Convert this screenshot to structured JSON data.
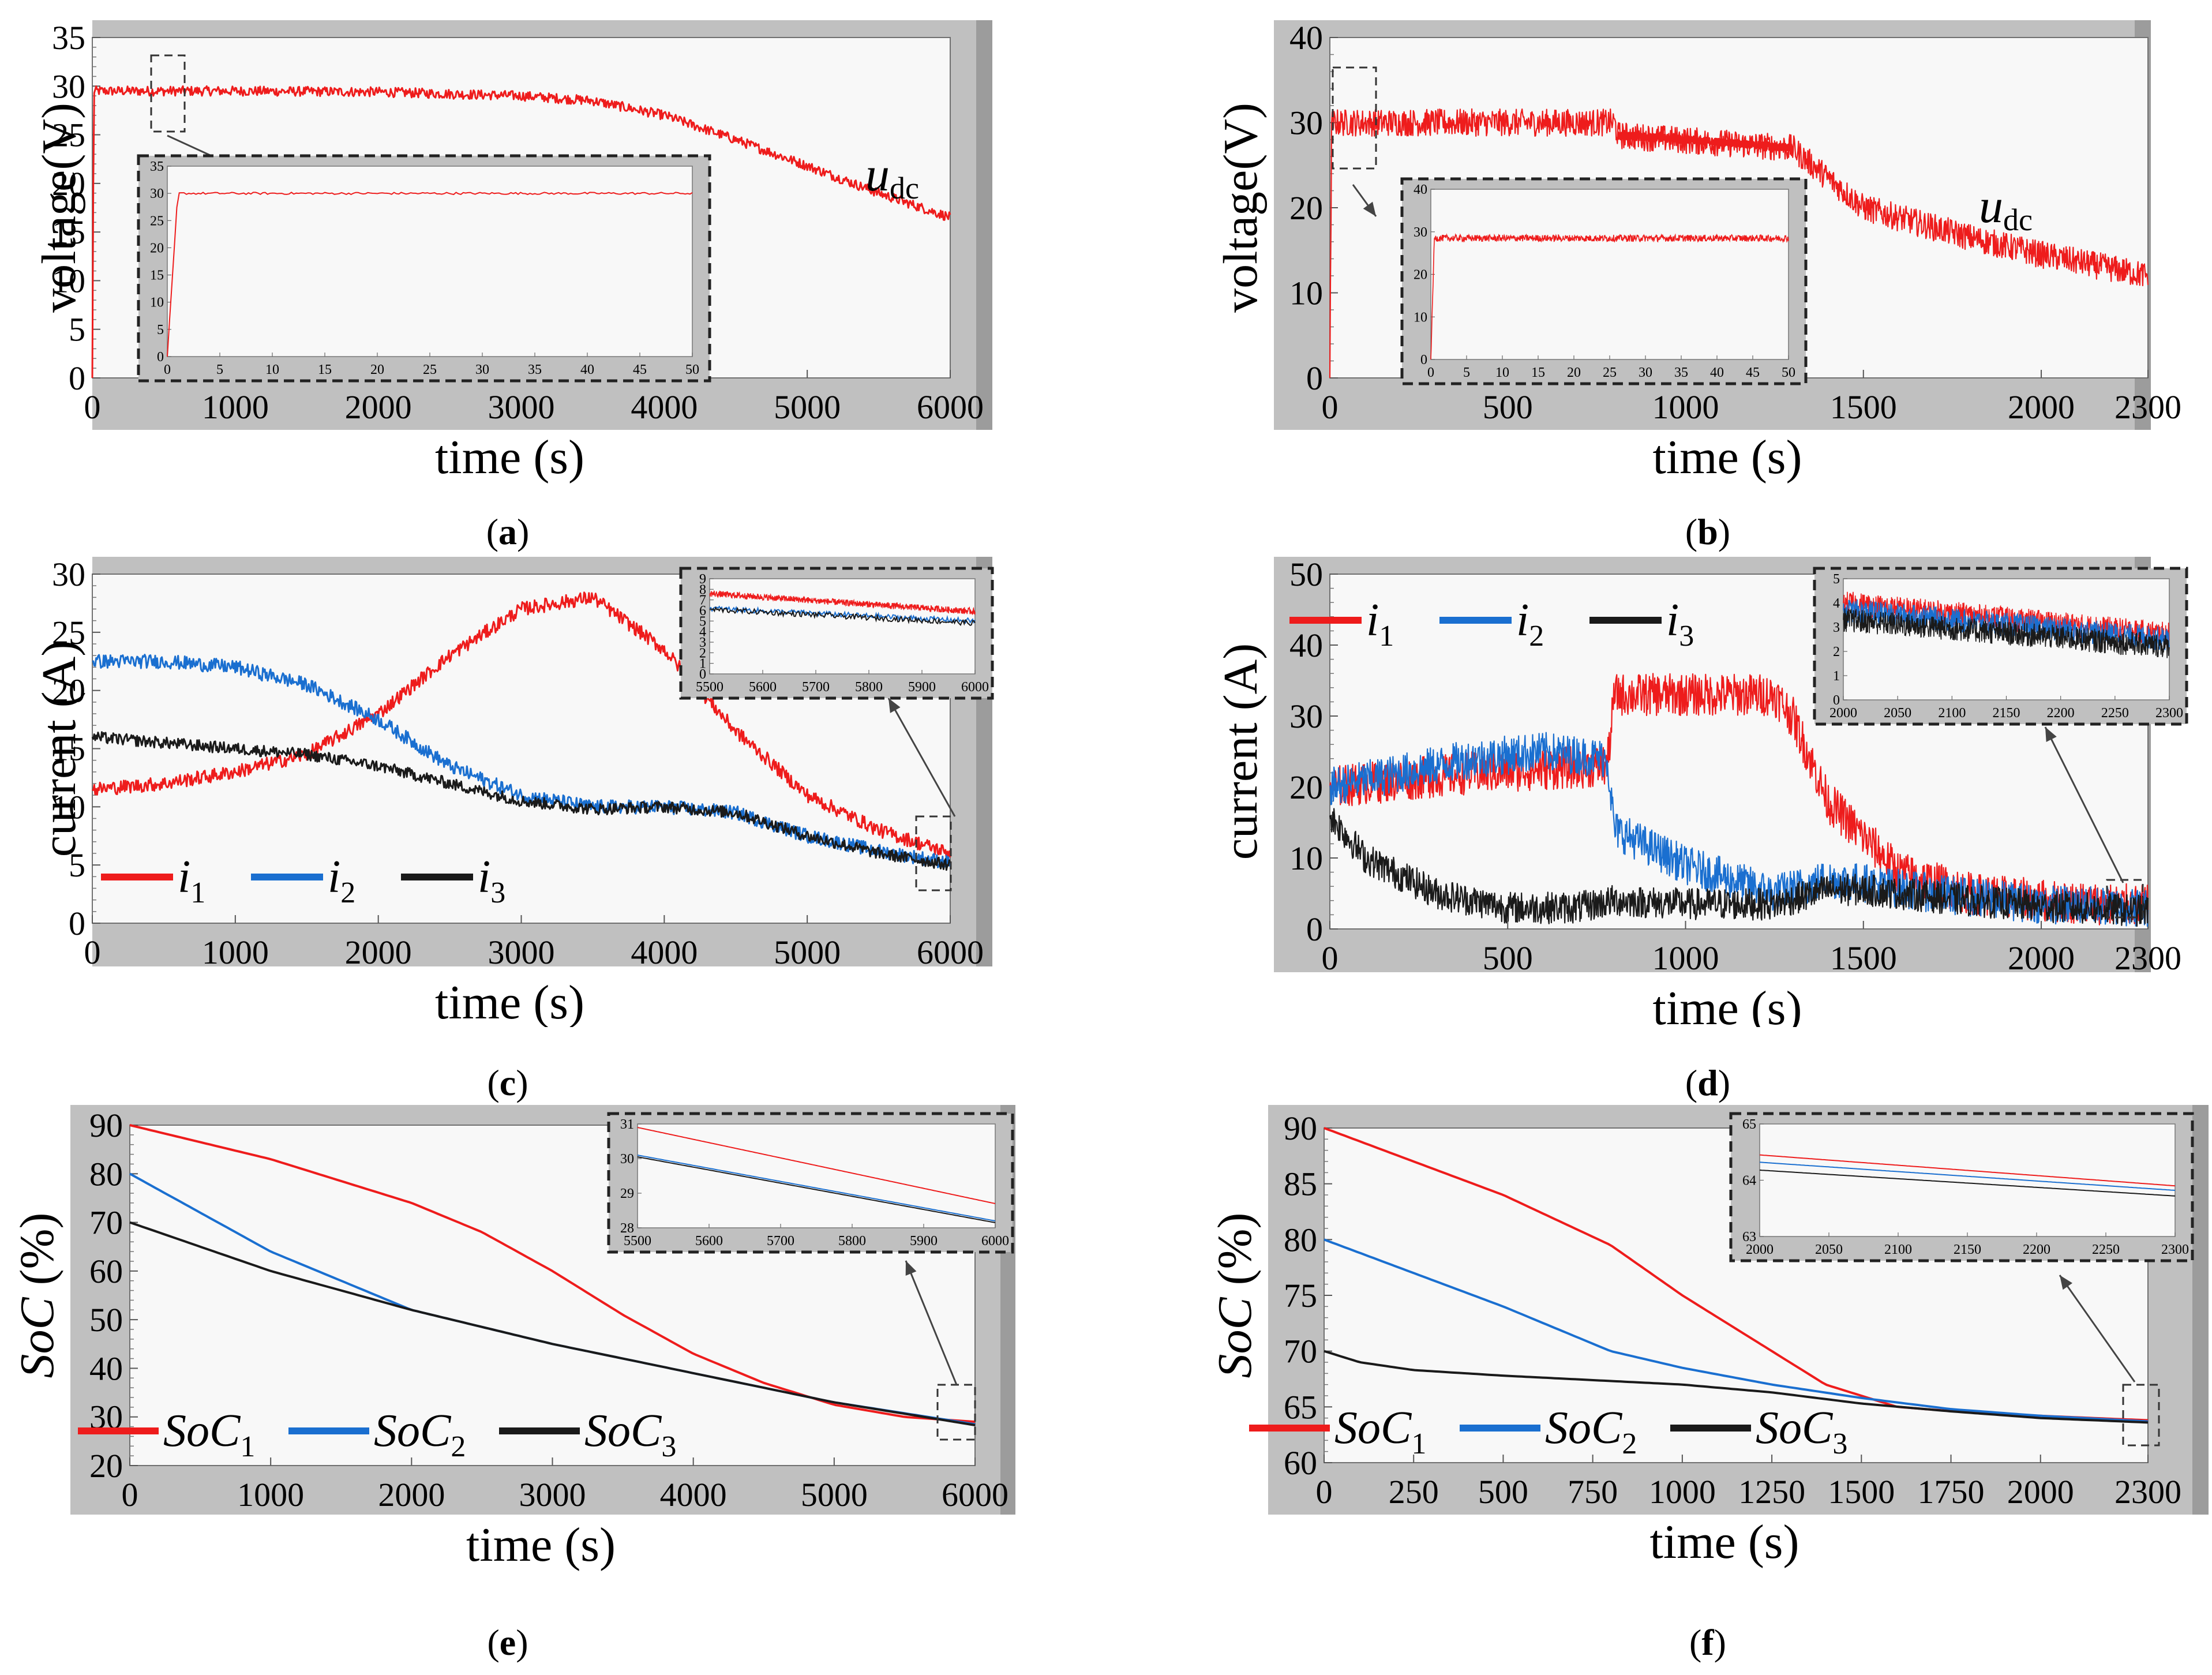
{
  "figure": {
    "captions": [
      {
        "letter": "a"
      },
      {
        "letter": "b"
      },
      {
        "letter": "c"
      },
      {
        "letter": "d"
      },
      {
        "letter": "e"
      },
      {
        "letter": "f"
      }
    ]
  },
  "colors": {
    "i1": "#ee1c1c",
    "i2": "#1a6fd0",
    "i3": "#1a1a1a",
    "frame": "#c0c0c0",
    "plot_bg": "#f8f8f8"
  },
  "chart_data": [
    {
      "id": "a",
      "type": "line",
      "xlabel": "time (s)",
      "ylabel": "voltage(V)",
      "xlim": [
        0,
        6000
      ],
      "ylim": [
        0,
        35
      ],
      "xticks": [
        "0",
        "1000",
        "2000",
        "3000",
        "4000",
        "5000",
        "6000"
      ],
      "yticks": [
        "0",
        "5",
        "10",
        "15",
        "20",
        "25",
        "30",
        "35"
      ],
      "series": [
        {
          "name": "u_dc",
          "label_main": "u",
          "label_sub": "dc",
          "color": "#ee1c1c",
          "noise": 1.0,
          "x": [
            0,
            10,
            500,
            1000,
            2000,
            3000,
            3500,
            4000,
            4500,
            5000,
            5500,
            6000
          ],
          "y": [
            0,
            29.5,
            29.5,
            29.5,
            29.4,
            29.0,
            28.5,
            27.0,
            24.5,
            21.8,
            19.0,
            16.5
          ]
        }
      ],
      "inset": {
        "xlim": [
          0,
          50
        ],
        "ylim": [
          0,
          35
        ],
        "xticks": [
          "0",
          "5",
          "10",
          "15",
          "20",
          "25",
          "30",
          "35",
          "40",
          "45",
          "50"
        ],
        "yticks": [
          "0",
          "5",
          "10",
          "15",
          "20",
          "25",
          "30",
          "35"
        ],
        "series": [
          {
            "color": "#ee1c1c",
            "noise": 0.4,
            "x": [
              0,
              1,
              50
            ],
            "y": [
              0,
              30,
              30
            ]
          }
        ]
      }
    },
    {
      "id": "b",
      "type": "line",
      "xlabel": "time (s)",
      "ylabel": "voltage(V)",
      "xlim": [
        0,
        2300
      ],
      "ylim": [
        0,
        40
      ],
      "xticks": [
        "0",
        "500",
        "1000",
        "1500",
        "2000",
        "2300"
      ],
      "yticks": [
        "0",
        "10",
        "20",
        "30",
        "40"
      ],
      "series": [
        {
          "name": "u_dc",
          "label_main": "u",
          "label_sub": "dc",
          "color": "#ee1c1c",
          "noise": 3.2,
          "x": [
            0,
            5,
            800,
            810,
            1300,
            1500,
            1800,
            2000,
            2300
          ],
          "y": [
            0,
            30,
            30,
            28.5,
            27.0,
            20.0,
            16.5,
            14.5,
            12.0
          ]
        },
        {
          "name": "u_dc_tail",
          "color": "#ee1c1c",
          "noise": 0.9,
          "x": [
            810,
            1000,
            1250,
            1300
          ],
          "y": [
            28.5,
            28.0,
            27.2,
            27.0
          ]
        }
      ],
      "inset": {
        "xlim": [
          0,
          50
        ],
        "ylim": [
          0,
          40
        ],
        "xticks": [
          "0",
          "5",
          "10",
          "15",
          "20",
          "25",
          "30",
          "35",
          "40",
          "45",
          "50"
        ],
        "yticks": [
          "0",
          "10",
          "20",
          "30",
          "40"
        ],
        "series": [
          {
            "color": "#ee1c1c",
            "noise": 1.6,
            "x": [
              0,
              0.5,
              50
            ],
            "y": [
              0,
              28.5,
              28.5
            ]
          }
        ]
      }
    },
    {
      "id": "c",
      "type": "line",
      "xlabel": "time (s)",
      "ylabel": "current (A)",
      "xlim": [
        0,
        6000
      ],
      "ylim": [
        0,
        30
      ],
      "xticks": [
        "0",
        "1000",
        "2000",
        "3000",
        "4000",
        "5000",
        "6000"
      ],
      "yticks": [
        "0",
        "5",
        "10",
        "15",
        "20",
        "25",
        "30"
      ],
      "legend": [
        {
          "main": "i",
          "sub": "1",
          "color": "#ee1c1c"
        },
        {
          "main": "i",
          "sub": "2",
          "color": "#1a6fd0"
        },
        {
          "main": "i",
          "sub": "3",
          "color": "#1a1a1a"
        }
      ],
      "series": [
        {
          "name": "i1",
          "color": "#ee1c1c",
          "noise": 1.2,
          "x": [
            0,
            500,
            1000,
            1500,
            2000,
            2500,
            3000,
            3500,
            4000,
            4500,
            5000,
            5500,
            6000
          ],
          "y": [
            11.5,
            12.0,
            13.0,
            14.5,
            18.0,
            23.0,
            27.0,
            28.0,
            23.5,
            16.5,
            11.0,
            8.0,
            6.0
          ]
        },
        {
          "name": "i2",
          "color": "#1a6fd0",
          "noise": 1.2,
          "x": [
            0,
            500,
            1000,
            1500,
            2000,
            2500,
            3000,
            3500,
            4000,
            4500,
            5000,
            5500,
            6000
          ],
          "y": [
            22.5,
            22.5,
            22.0,
            20.5,
            17.5,
            13.5,
            11.0,
            10.0,
            10.0,
            9.5,
            7.5,
            6.2,
            5.2
          ]
        },
        {
          "name": "i3",
          "color": "#1a1a1a",
          "noise": 1.0,
          "x": [
            0,
            500,
            1000,
            1500,
            2000,
            2500,
            3000,
            3500,
            4000,
            4500,
            5000,
            5500,
            6000
          ],
          "y": [
            16.0,
            15.5,
            15.0,
            14.5,
            13.5,
            12.0,
            10.5,
            9.8,
            10.0,
            9.5,
            7.5,
            6.0,
            5.0
          ]
        }
      ],
      "inset": {
        "xlim": [
          5500,
          6000
        ],
        "ylim": [
          0,
          9
        ],
        "xticks": [
          "5500",
          "5600",
          "5700",
          "5800",
          "5900",
          "6000"
        ],
        "yticks": [
          "0",
          "1",
          "2",
          "3",
          "4",
          "5",
          "6",
          "7",
          "8",
          "9"
        ],
        "series": [
          {
            "color": "#ee1c1c",
            "noise": 0.6,
            "x": [
              5500,
              6000
            ],
            "y": [
              7.6,
              5.9
            ]
          },
          {
            "color": "#1a6fd0",
            "noise": 0.5,
            "x": [
              5500,
              6000
            ],
            "y": [
              6.2,
              5.0
            ]
          },
          {
            "color": "#1a1a1a",
            "noise": 0.5,
            "x": [
              5500,
              6000
            ],
            "y": [
              6.1,
              4.8
            ]
          }
        ]
      }
    },
    {
      "id": "d",
      "type": "line",
      "xlabel": "time (s)",
      "ylabel": "current (A)",
      "xlim": [
        0,
        2300
      ],
      "ylim": [
        0,
        50
      ],
      "xticks": [
        "0",
        "500",
        "1000",
        "1500",
        "2000",
        "2300"
      ],
      "yticks": [
        "0",
        "10",
        "20",
        "30",
        "40",
        "50"
      ],
      "legend": [
        {
          "main": "i",
          "sub": "1",
          "color": "#ee1c1c"
        },
        {
          "main": "i",
          "sub": "2",
          "color": "#1a6fd0"
        },
        {
          "main": "i",
          "sub": "3",
          "color": "#1a1a1a"
        }
      ],
      "series": [
        {
          "name": "i1",
          "color": "#ee1c1c",
          "noise": 6.0,
          "x": [
            0,
            400,
            780,
            800,
            1000,
            1250,
            1300,
            1400,
            1600,
            1800,
            2000,
            2300
          ],
          "y": [
            20,
            22,
            23,
            33,
            33,
            33,
            30,
            18,
            8,
            5,
            4,
            3.2
          ]
        },
        {
          "name": "i2",
          "color": "#1a6fd0",
          "noise": 5.5,
          "x": [
            0,
            200,
            400,
            600,
            780,
            800,
            1000,
            1250,
            1400,
            1500,
            1700,
            2000,
            2300
          ],
          "y": [
            20,
            22,
            24,
            25,
            24,
            14,
            9,
            5,
            7,
            6.5,
            5,
            3.5,
            3
          ]
        },
        {
          "name": "i3",
          "color": "#1a1a1a",
          "noise": 4.5,
          "x": [
            0,
            100,
            300,
            500,
            700,
            800,
            1000,
            1250,
            1400,
            1500,
            1800,
            2000,
            2300
          ],
          "y": [
            16,
            10,
            5,
            3,
            3,
            4,
            3.5,
            3.5,
            5.5,
            5.5,
            4,
            3.2,
            2.5
          ]
        }
      ],
      "inset": {
        "xlim": [
          2000,
          2300
        ],
        "ylim": [
          0,
          5
        ],
        "xticks": [
          "2000",
          "2050",
          "2100",
          "2150",
          "2200",
          "2250",
          "2300"
        ],
        "yticks": [
          "0",
          "1",
          "2",
          "3",
          "4",
          "5"
        ],
        "series": [
          {
            "color": "#ee1c1c",
            "noise": 1.0,
            "x": [
              2000,
              2300
            ],
            "y": [
              4.0,
              2.7
            ]
          },
          {
            "color": "#1a6fd0",
            "noise": 1.0,
            "x": [
              2000,
              2300
            ],
            "y": [
              3.7,
              2.5
            ]
          },
          {
            "color": "#1a1a1a",
            "noise": 1.0,
            "x": [
              2000,
              2300
            ],
            "y": [
              3.3,
              2.2
            ]
          }
        ]
      }
    },
    {
      "id": "e",
      "type": "line",
      "xlabel": "time (s)",
      "ylabel_main": "SoC",
      "ylabel_rest": " (%)",
      "xlim": [
        0,
        6000
      ],
      "ylim": [
        20,
        90
      ],
      "xticks": [
        "0",
        "1000",
        "2000",
        "3000",
        "4000",
        "5000",
        "6000"
      ],
      "yticks": [
        "20",
        "30",
        "40",
        "50",
        "60",
        "70",
        "80",
        "90"
      ],
      "legend": [
        {
          "main": "SoC",
          "sub": "1",
          "color": "#ee1c1c"
        },
        {
          "main": "SoC",
          "sub": "2",
          "color": "#1a6fd0"
        },
        {
          "main": "SoC",
          "sub": "3",
          "color": "#1a1a1a"
        }
      ],
      "series": [
        {
          "name": "SoC1",
          "color": "#ee1c1c",
          "noise": 0,
          "x": [
            0,
            1000,
            2000,
            2500,
            3000,
            3500,
            4000,
            4500,
            5000,
            5500,
            6000
          ],
          "y": [
            90,
            83,
            74,
            68,
            60,
            51,
            43,
            37,
            32.5,
            30,
            29
          ]
        },
        {
          "name": "SoC2",
          "color": "#1a6fd0",
          "noise": 0,
          "x": [
            0,
            500,
            1000,
            2000,
            3000,
            4000,
            5000,
            6000
          ],
          "y": [
            80,
            72,
            64,
            52,
            45,
            39,
            33,
            28.5
          ]
        },
        {
          "name": "SoC3",
          "color": "#1a1a1a",
          "noise": 0,
          "x": [
            0,
            500,
            1000,
            2000,
            3000,
            4000,
            5000,
            6000
          ],
          "y": [
            70,
            65,
            60,
            52,
            45,
            39,
            33,
            28.3
          ]
        }
      ],
      "inset": {
        "xlim": [
          5500,
          6000
        ],
        "ylim": [
          28,
          31
        ],
        "xticks": [
          "5500",
          "5600",
          "5700",
          "5800",
          "5900",
          "6000"
        ],
        "yticks": [
          "28",
          "29",
          "30",
          "31"
        ],
        "series": [
          {
            "color": "#ee1c1c",
            "noise": 0,
            "x": [
              5500,
              6000
            ],
            "y": [
              30.9,
              28.7
            ]
          },
          {
            "color": "#1a6fd0",
            "noise": 0,
            "x": [
              5500,
              6000
            ],
            "y": [
              30.1,
              28.2
            ]
          },
          {
            "color": "#1a1a1a",
            "noise": 0,
            "x": [
              5500,
              6000
            ],
            "y": [
              30.05,
              28.15
            ]
          }
        ]
      }
    },
    {
      "id": "f",
      "type": "line",
      "xlabel": "time (s)",
      "ylabel_main": "SoC",
      "ylabel_rest": " (%)",
      "xlim": [
        0,
        2300
      ],
      "ylim": [
        60,
        90
      ],
      "xticks": [
        "0",
        "250",
        "500",
        "750",
        "1000",
        "1250",
        "1500",
        "1750",
        "2000",
        "2300"
      ],
      "yticks": [
        "60",
        "65",
        "70",
        "75",
        "80",
        "85",
        "90"
      ],
      "legend": [
        {
          "main": "SoC",
          "sub": "1",
          "color": "#ee1c1c"
        },
        {
          "main": "SoC",
          "sub": "2",
          "color": "#1a6fd0"
        },
        {
          "main": "SoC",
          "sub": "3",
          "color": "#1a1a1a"
        }
      ],
      "series": [
        {
          "name": "SoC1",
          "color": "#ee1c1c",
          "noise": 0,
          "x": [
            0,
            250,
            500,
            800,
            1000,
            1250,
            1400,
            1600,
            1800,
            2000,
            2300
          ],
          "y": [
            90,
            87,
            84,
            79.5,
            75,
            70,
            67,
            65,
            64.5,
            64.2,
            63.8
          ]
        },
        {
          "name": "SoC2",
          "color": "#1a6fd0",
          "noise": 0,
          "x": [
            0,
            250,
            500,
            800,
            1000,
            1250,
            1500,
            1750,
            2000,
            2300
          ],
          "y": [
            80,
            77,
            74,
            70,
            68.5,
            67,
            65.8,
            64.8,
            64.2,
            63.7
          ]
        },
        {
          "name": "SoC3",
          "color": "#1a1a1a",
          "noise": 0,
          "x": [
            0,
            100,
            250,
            500,
            750,
            1000,
            1250,
            1500,
            1750,
            2000,
            2300
          ],
          "y": [
            70,
            69,
            68.3,
            67.8,
            67.4,
            67,
            66.3,
            65.3,
            64.6,
            64.0,
            63.6
          ]
        }
      ],
      "inset": {
        "xlim": [
          2000,
          2300
        ],
        "ylim": [
          63,
          65
        ],
        "xticks": [
          "2000",
          "2050",
          "2100",
          "2150",
          "2200",
          "2250",
          "2300"
        ],
        "yticks": [
          "63",
          "64",
          "65"
        ],
        "series": [
          {
            "color": "#ee1c1c",
            "noise": 0,
            "x": [
              2000,
              2300
            ],
            "y": [
              64.45,
              63.9
            ]
          },
          {
            "color": "#1a6fd0",
            "noise": 0,
            "x": [
              2000,
              2300
            ],
            "y": [
              64.32,
              63.82
            ]
          },
          {
            "color": "#1a1a1a",
            "noise": 0,
            "x": [
              2000,
              2300
            ],
            "y": [
              64.18,
              63.72
            ]
          }
        ]
      }
    }
  ]
}
